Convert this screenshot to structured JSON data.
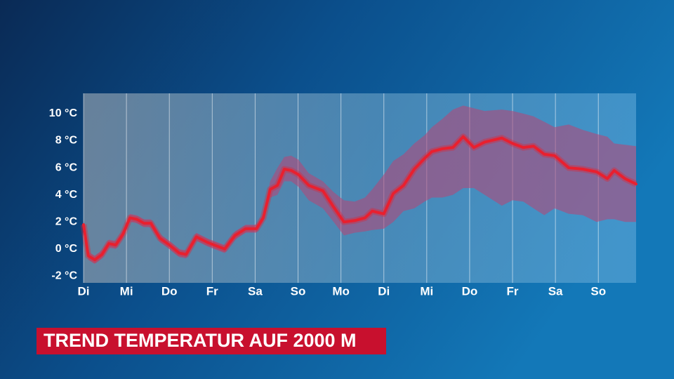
{
  "chart_data": {
    "type": "line",
    "title": "TREND TEMPERATUR AUF 2000 M",
    "x": [
      0,
      0.11,
      0.26,
      0.43,
      0.59,
      0.75,
      0.92,
      1.08,
      1.24,
      1.41,
      1.57,
      1.78,
      2,
      2.23,
      2.39,
      2.63,
      2.88,
      3.04,
      3.29,
      3.53,
      3.78,
      4.03,
      4.19,
      4.35,
      4.52,
      4.68,
      4.84,
      5.01,
      5.25,
      5.58,
      5.83,
      6.07,
      6.32,
      6.56,
      6.73,
      7.0,
      7.22,
      7.46,
      7.71,
      7.95,
      8.12,
      8.36,
      8.61,
      8.85,
      9.1,
      9.35,
      9.75,
      10,
      10.25,
      10.49,
      10.74,
      10.98,
      11.31,
      11.64,
      11.96,
      12.21,
      12.37,
      12.62,
      12.88
    ],
    "series": [
      {
        "color": "#e8202f",
        "values": [
          1.8,
          -0.5,
          -0.8,
          -0.4,
          0.4,
          0.3,
          1.1,
          2.3,
          2.2,
          1.9,
          1.9,
          0.8,
          0.3,
          -0.3,
          -0.4,
          0.9,
          0.5,
          0.3,
          0,
          1.0,
          1.5,
          1.5,
          2.3,
          4.4,
          4.7,
          5.9,
          5.8,
          5.5,
          4.7,
          4.3,
          3.1,
          2.0,
          2.1,
          2.3,
          2.8,
          2.6,
          4.1,
          4.7,
          5.9,
          6.7,
          7.2,
          7.4,
          7.5,
          8.3,
          7.5,
          7.9,
          8.2,
          7.8,
          7.5,
          7.6,
          7.0,
          6.9,
          6.0,
          5.9,
          5.7,
          5.2,
          5.8,
          5.2,
          4.8
        ]
      }
    ],
    "band": {
      "color": "#b04a7a",
      "upper": [
        2.1,
        -0.2,
        -0.5,
        -0.1,
        0.7,
        0.6,
        1.4,
        2.6,
        2.5,
        2.2,
        2.2,
        1.1,
        0.6,
        0,
        -0.1,
        1.2,
        0.8,
        0.6,
        0.3,
        1.3,
        1.8,
        1.8,
        2.6,
        5.0,
        6.0,
        6.8,
        6.9,
        6.6,
        5.6,
        5.0,
        4.2,
        3.6,
        3.5,
        3.8,
        4.4,
        5.5,
        6.5,
        7.0,
        7.8,
        8.4,
        9.0,
        9.6,
        10.3,
        10.6,
        10.4,
        10.2,
        10.3,
        10.2,
        10.0,
        9.8,
        9.4,
        9.0,
        9.2,
        8.8,
        8.5,
        8.3,
        7.8,
        7.7,
        7.6
      ],
      "lower": [
        1.5,
        -0.8,
        -1.1,
        -0.7,
        0.1,
        0,
        0.8,
        2.0,
        1.9,
        1.6,
        1.6,
        0.5,
        0,
        -0.6,
        -0.7,
        0.6,
        0.2,
        0,
        -0.3,
        0.7,
        1.2,
        1.2,
        2.0,
        3.8,
        4.0,
        5.0,
        5.0,
        4.6,
        3.6,
        3.0,
        2.0,
        1.0,
        1.2,
        1.3,
        1.4,
        1.5,
        2.0,
        2.8,
        3.0,
        3.5,
        3.8,
        3.8,
        4.0,
        4.5,
        4.5,
        4.0,
        3.2,
        3.6,
        3.5,
        3.0,
        2.5,
        3.0,
        2.6,
        2.5,
        2.0,
        2.2,
        2.2,
        2.0,
        2.0
      ]
    },
    "xlim": [
      0,
      12.88
    ],
    "xticks": [
      {
        "value": 0,
        "label": "Di"
      },
      {
        "value": 1,
        "label": "Mi"
      },
      {
        "value": 2,
        "label": "Do"
      },
      {
        "value": 3,
        "label": "Fr"
      },
      {
        "value": 4,
        "label": "Sa"
      },
      {
        "value": 5,
        "label": "So"
      },
      {
        "value": 6,
        "label": "Mo"
      },
      {
        "value": 7,
        "label": "Di"
      },
      {
        "value": 8,
        "label": "Mi"
      },
      {
        "value": 9,
        "label": "Do"
      },
      {
        "value": 10,
        "label": "Fr"
      },
      {
        "value": 11,
        "label": "Sa"
      },
      {
        "value": 12,
        "label": "So"
      }
    ],
    "ylim": [
      -2.5,
      11.5
    ],
    "yticks": [
      {
        "value": 10,
        "label": "10 °C"
      },
      {
        "value": 8,
        "label": "8 °C"
      },
      {
        "value": 6,
        "label": "6 °C"
      },
      {
        "value": 4,
        "label": "4 °C"
      },
      {
        "value": 2,
        "label": "2 °C"
      },
      {
        "value": 0,
        "label": "0 °C"
      },
      {
        "value": -2,
        "label": "-2 °C"
      }
    ],
    "grid": true
  }
}
